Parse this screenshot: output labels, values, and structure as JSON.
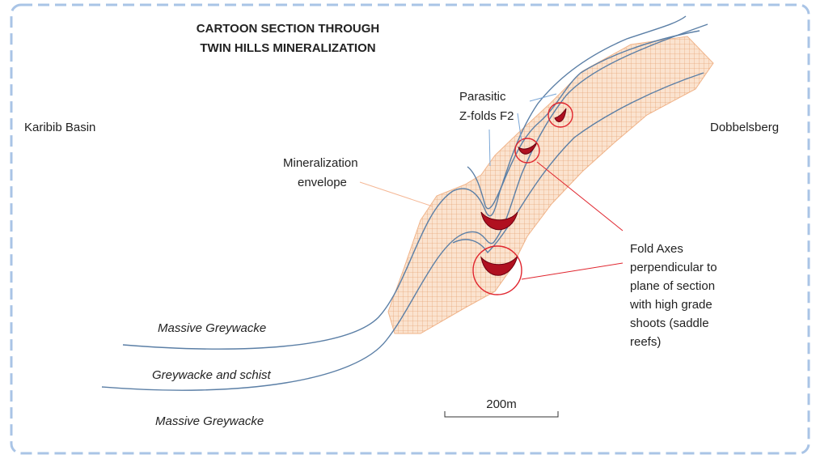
{
  "header": {
    "title": [
      "CARTOON SECTION THROUGH",
      "TWIN HILLS MINERALIZATION"
    ]
  },
  "regions": {
    "left": "Karibib Basin",
    "right": "Dobbelsberg"
  },
  "annotations": {
    "parasitic": [
      "Parasitic",
      "Z-folds F2"
    ],
    "envelope": [
      "Mineralization",
      "envelope"
    ],
    "fold_axes": [
      "Fold Axes",
      "perpendicular to",
      "plane of section",
      "with high grade",
      "shoots (saddle",
      "reefs)"
    ]
  },
  "layers": [
    "Massive Greywacke",
    "Greywacke and schist",
    "Massive Greywacke"
  ],
  "scale": "200m"
}
